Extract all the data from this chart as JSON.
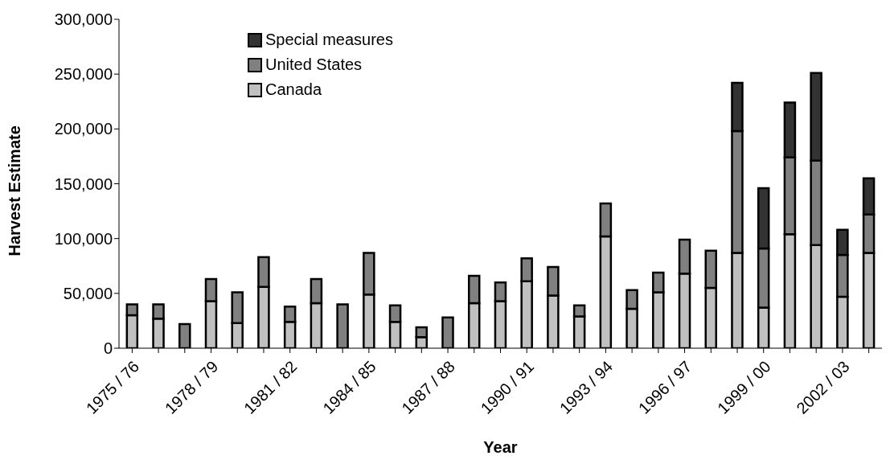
{
  "chart_data": {
    "type": "bar",
    "stacked": true,
    "xlabel": "Year",
    "ylabel": "Harvest Estimate",
    "legend": "top left",
    "grid": false,
    "categories": [
      "1975 / 76",
      null,
      null,
      "1978 / 79",
      null,
      null,
      "1981 / 82",
      null,
      null,
      "1984 / 85",
      null,
      null,
      "1987 / 88",
      null,
      null,
      "1990 / 91",
      null,
      null,
      "1993 / 94",
      null,
      null,
      "1996 / 97",
      null,
      null,
      "1999 / 00",
      null,
      null,
      "2002 / 03",
      null
    ],
    "ylim": [
      0,
      300000
    ],
    "yticks": [
      0,
      {
        "value": 50000,
        "label": "50,000"
      },
      {
        "value": 100000,
        "label": "100,000"
      },
      {
        "value": 150000,
        "label": "150,000"
      },
      {
        "value": 200000,
        "label": "200,000"
      },
      {
        "value": 250000,
        "label": "250,000"
      },
      {
        "value": 300000,
        "label": "300,000"
      }
    ],
    "series": [
      {
        "name": "Canada",
        "color": "#c0c0c0",
        "values": [
          30000,
          27000,
          0,
          43000,
          23000,
          56000,
          24000,
          41000,
          0,
          49000,
          24000,
          10000,
          null,
          41000,
          43000,
          61000,
          48000,
          29000,
          102000,
          36000,
          51000,
          68000,
          55000,
          87000,
          37000,
          104000,
          94000,
          47000,
          87000
        ]
      },
      {
        "name": "United States",
        "color": "#808080",
        "values": [
          10000,
          13000,
          22000,
          20000,
          28000,
          27000,
          14000,
          22000,
          40000,
          38000,
          15000,
          9000,
          28000,
          25000,
          17000,
          21000,
          26000,
          10000,
          30000,
          17000,
          18000,
          31000,
          34000,
          111000,
          54000,
          70000,
          77000,
          38000,
          35000
        ]
      },
      {
        "name": "Special measures",
        "color": "#333333",
        "values": [
          0,
          0,
          0,
          0,
          0,
          0,
          0,
          0,
          0,
          0,
          0,
          0,
          0,
          0,
          0,
          0,
          0,
          0,
          0,
          0,
          0,
          0,
          0,
          44000,
          55000,
          50000,
          80000,
          23000,
          33000
        ]
      }
    ]
  }
}
